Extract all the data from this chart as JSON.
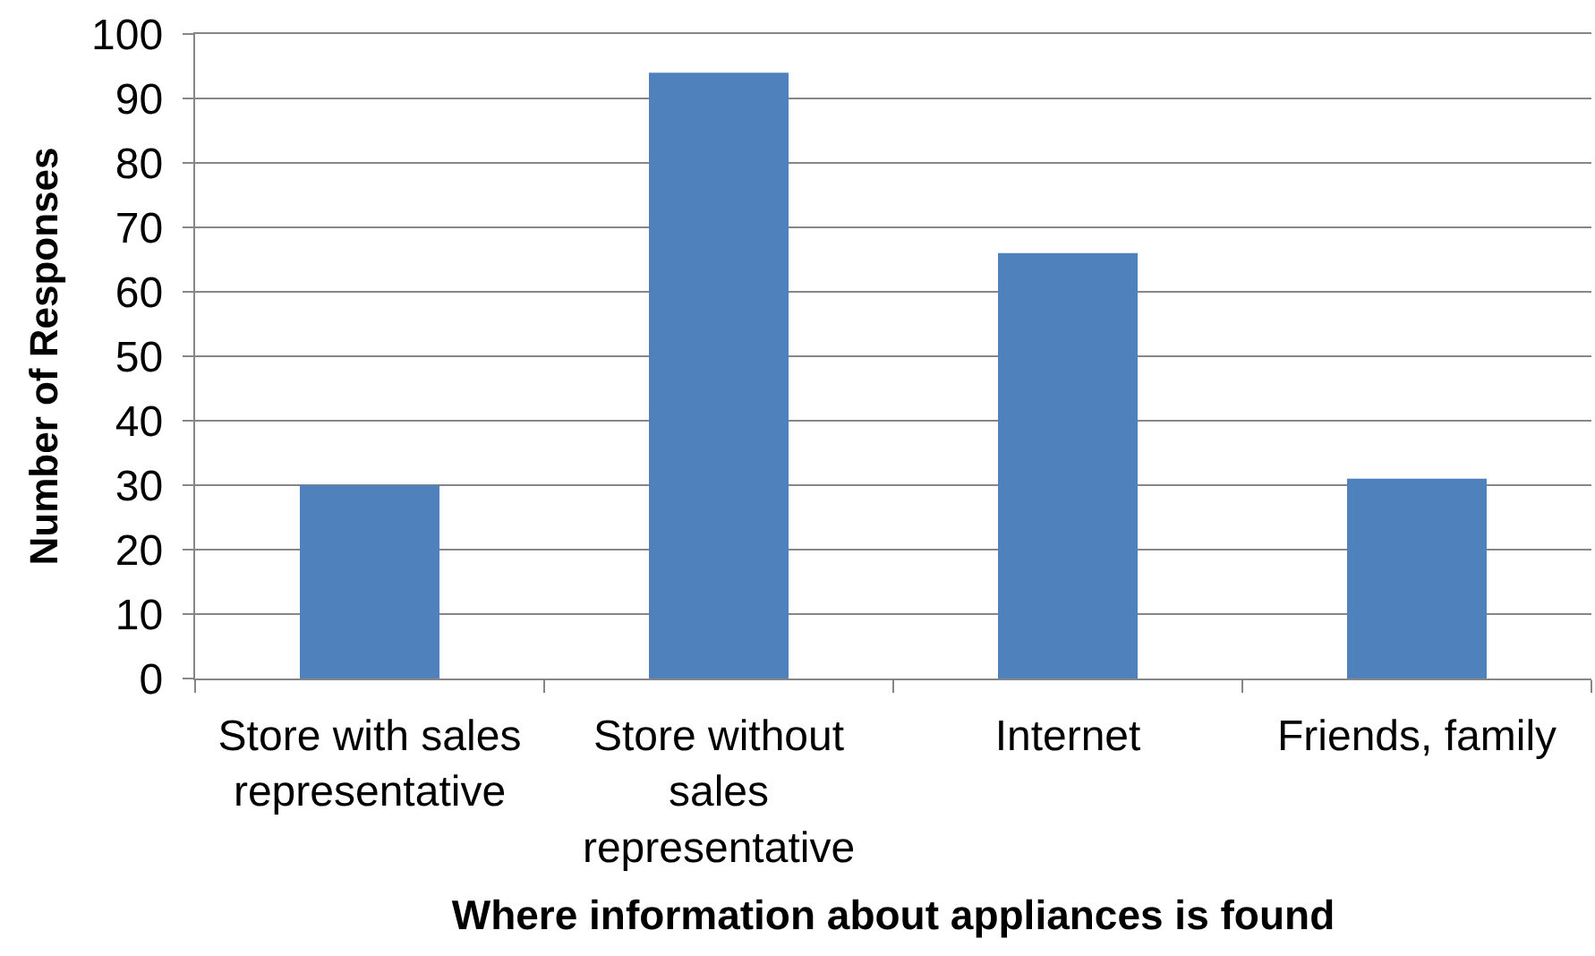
{
  "chart_data": {
    "type": "bar",
    "xlabel": "Where information about appliances is found",
    "ylabel": "Number of Responses",
    "categories": [
      "Store with sales representative",
      "Store without sales representative",
      "Internet",
      "Friends, family"
    ],
    "values": [
      30,
      94,
      66,
      31
    ],
    "color": "#4f81bd",
    "ylim": [
      0,
      100
    ],
    "yticks": [
      0,
      10,
      20,
      30,
      40,
      50,
      60,
      70,
      80,
      90,
      100
    ],
    "grid": "y"
  }
}
